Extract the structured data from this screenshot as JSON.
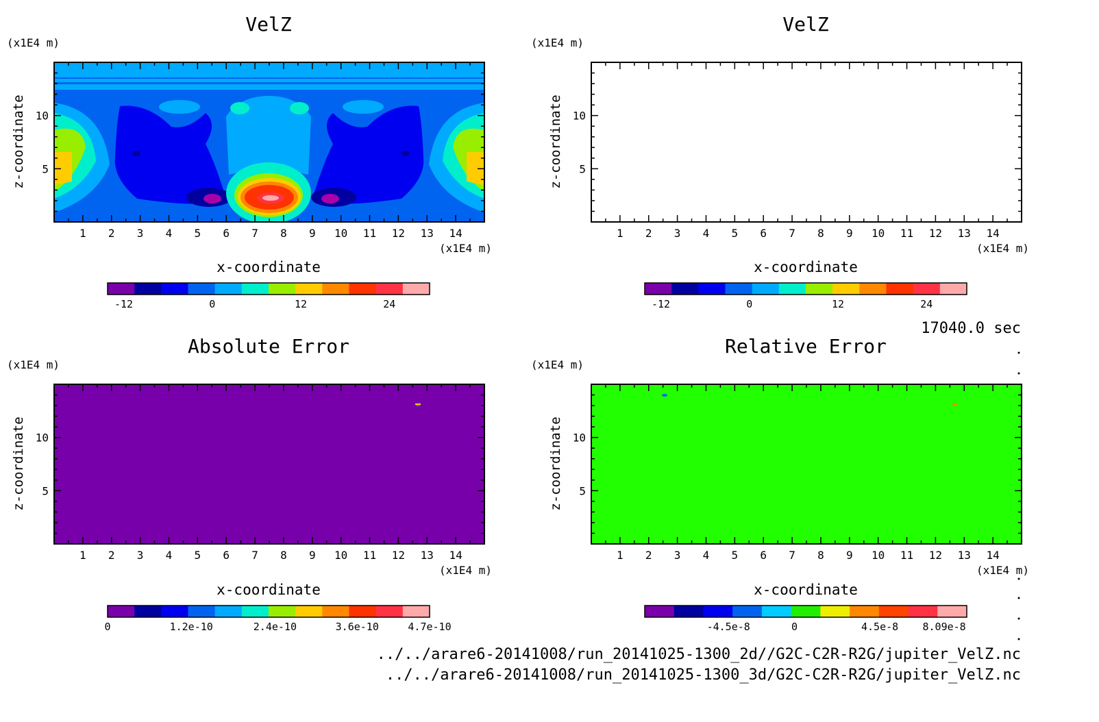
{
  "figure": {
    "time_label": "17040.0 sec",
    "file_paths": [
      "../../arare6-20141008/run_20141025-1300_2d//G2C-C2R-R2G/jupiter_VelZ.nc",
      "../../arare6-20141008/run_20141025-1300_3d/G2C-C2R-R2G/jupiter_VelZ.nc"
    ]
  },
  "chart_data": [
    {
      "type": "heatmap",
      "title": "VelZ",
      "xlabel": "x-coordinate",
      "ylabel": "z-coordinate",
      "x_unit": "(x1E4 m)",
      "y_unit": "(x1E4 m)",
      "xlim": [
        0,
        15
      ],
      "ylim": [
        0,
        15
      ],
      "x_ticks": [
        "1",
        "2",
        "3",
        "4",
        "5",
        "6",
        "7",
        "8",
        "9",
        "10",
        "11",
        "12",
        "13",
        "14"
      ],
      "y_ticks": [
        "5",
        "10"
      ],
      "colorbar": {
        "colors": [
          "#7a00aa",
          "#0000a0",
          "#0000f0",
          "#0064f0",
          "#00aaff",
          "#00eecc",
          "#99ee00",
          "#ffcc00",
          "#ff8800",
          "#ff3300",
          "#ff3344",
          "#ffaaaa"
        ],
        "ticks": [
          "-12",
          "0",
          "12",
          "24"
        ]
      }
    },
    {
      "type": "heatmap",
      "title": "VelZ",
      "xlabel": "x-coordinate",
      "ylabel": "z-coordinate",
      "x_unit": "(x1E4 m)",
      "y_unit": "(x1E4 m)",
      "xlim": [
        0,
        15
      ],
      "ylim": [
        0,
        15
      ],
      "x_ticks": [
        "1",
        "2",
        "3",
        "4",
        "5",
        "6",
        "7",
        "8",
        "9",
        "10",
        "11",
        "12",
        "13",
        "14"
      ],
      "y_ticks": [
        "5",
        "10"
      ],
      "colorbar": {
        "colors": [
          "#7a00aa",
          "#0000a0",
          "#0000f0",
          "#0064f0",
          "#00aaff",
          "#00eecc",
          "#99ee00",
          "#ffcc00",
          "#ff8800",
          "#ff3300",
          "#ff3344",
          "#ffaaaa"
        ],
        "ticks": [
          "-12",
          "0",
          "12",
          "24"
        ]
      }
    },
    {
      "type": "heatmap",
      "title": "Absolute Error",
      "xlabel": "x-coordinate",
      "ylabel": "z-coordinate",
      "x_unit": "(x1E4 m)",
      "y_unit": "(x1E4 m)",
      "xlim": [
        0,
        15
      ],
      "ylim": [
        0,
        15
      ],
      "x_ticks": [
        "1",
        "2",
        "3",
        "4",
        "5",
        "6",
        "7",
        "8",
        "9",
        "10",
        "11",
        "12",
        "13",
        "14"
      ],
      "y_ticks": [
        "5",
        "10"
      ],
      "fill_color": "#7800aa",
      "colorbar": {
        "colors": [
          "#7a00aa",
          "#0000a0",
          "#0000f0",
          "#0064f0",
          "#00aaff",
          "#00eecc",
          "#99ee00",
          "#ffcc00",
          "#ff8800",
          "#ff3300",
          "#ff3344",
          "#ffaaaa"
        ],
        "ticks": [
          "0",
          "1.2e-10",
          "2.4e-10",
          "3.6e-10",
          "4.7e-10"
        ]
      }
    },
    {
      "type": "heatmap",
      "title": "Relative Error",
      "xlabel": "x-coordinate",
      "ylabel": "z-coordinate",
      "x_unit": "(x1E4 m)",
      "y_unit": "(x1E4 m)",
      "xlim": [
        0,
        15
      ],
      "ylim": [
        0,
        15
      ],
      "x_ticks": [
        "1",
        "2",
        "3",
        "4",
        "5",
        "6",
        "7",
        "8",
        "9",
        "10",
        "11",
        "12",
        "13",
        "14"
      ],
      "y_ticks": [
        "5",
        "10"
      ],
      "fill_color": "#22ff00",
      "colorbar": {
        "colors": [
          "#7a00aa",
          "#0000a0",
          "#0000f0",
          "#0064f0",
          "#00ccff",
          "#22ee00",
          "#eeee00",
          "#ff8800",
          "#ff4400",
          "#ff3344",
          "#ffaaaa"
        ],
        "ticks": [
          "-4.5e-8",
          "0",
          "4.5e-8",
          "8.09e-8"
        ]
      }
    }
  ]
}
